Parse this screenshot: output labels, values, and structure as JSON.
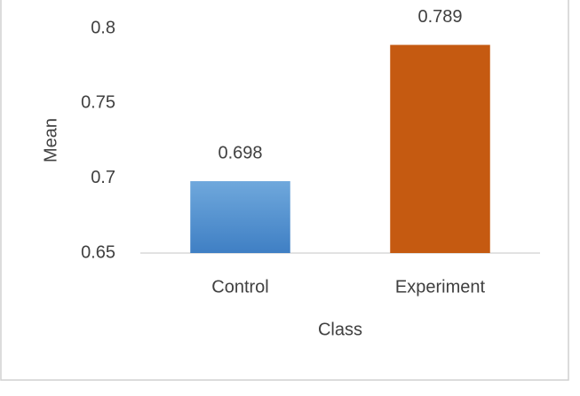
{
  "chart_data": {
    "type": "bar",
    "x_label": "Class",
    "y_label": "Mean",
    "categories": [
      "Control",
      "Experiment"
    ],
    "values": [
      0.698,
      0.789
    ],
    "colors": [
      "#4a8bd0",
      "#c55a11"
    ],
    "ylim": [
      0.65,
      0.8
    ],
    "yticks": [
      0.65,
      0.7,
      0.75,
      0.8
    ],
    "grid": false
  }
}
